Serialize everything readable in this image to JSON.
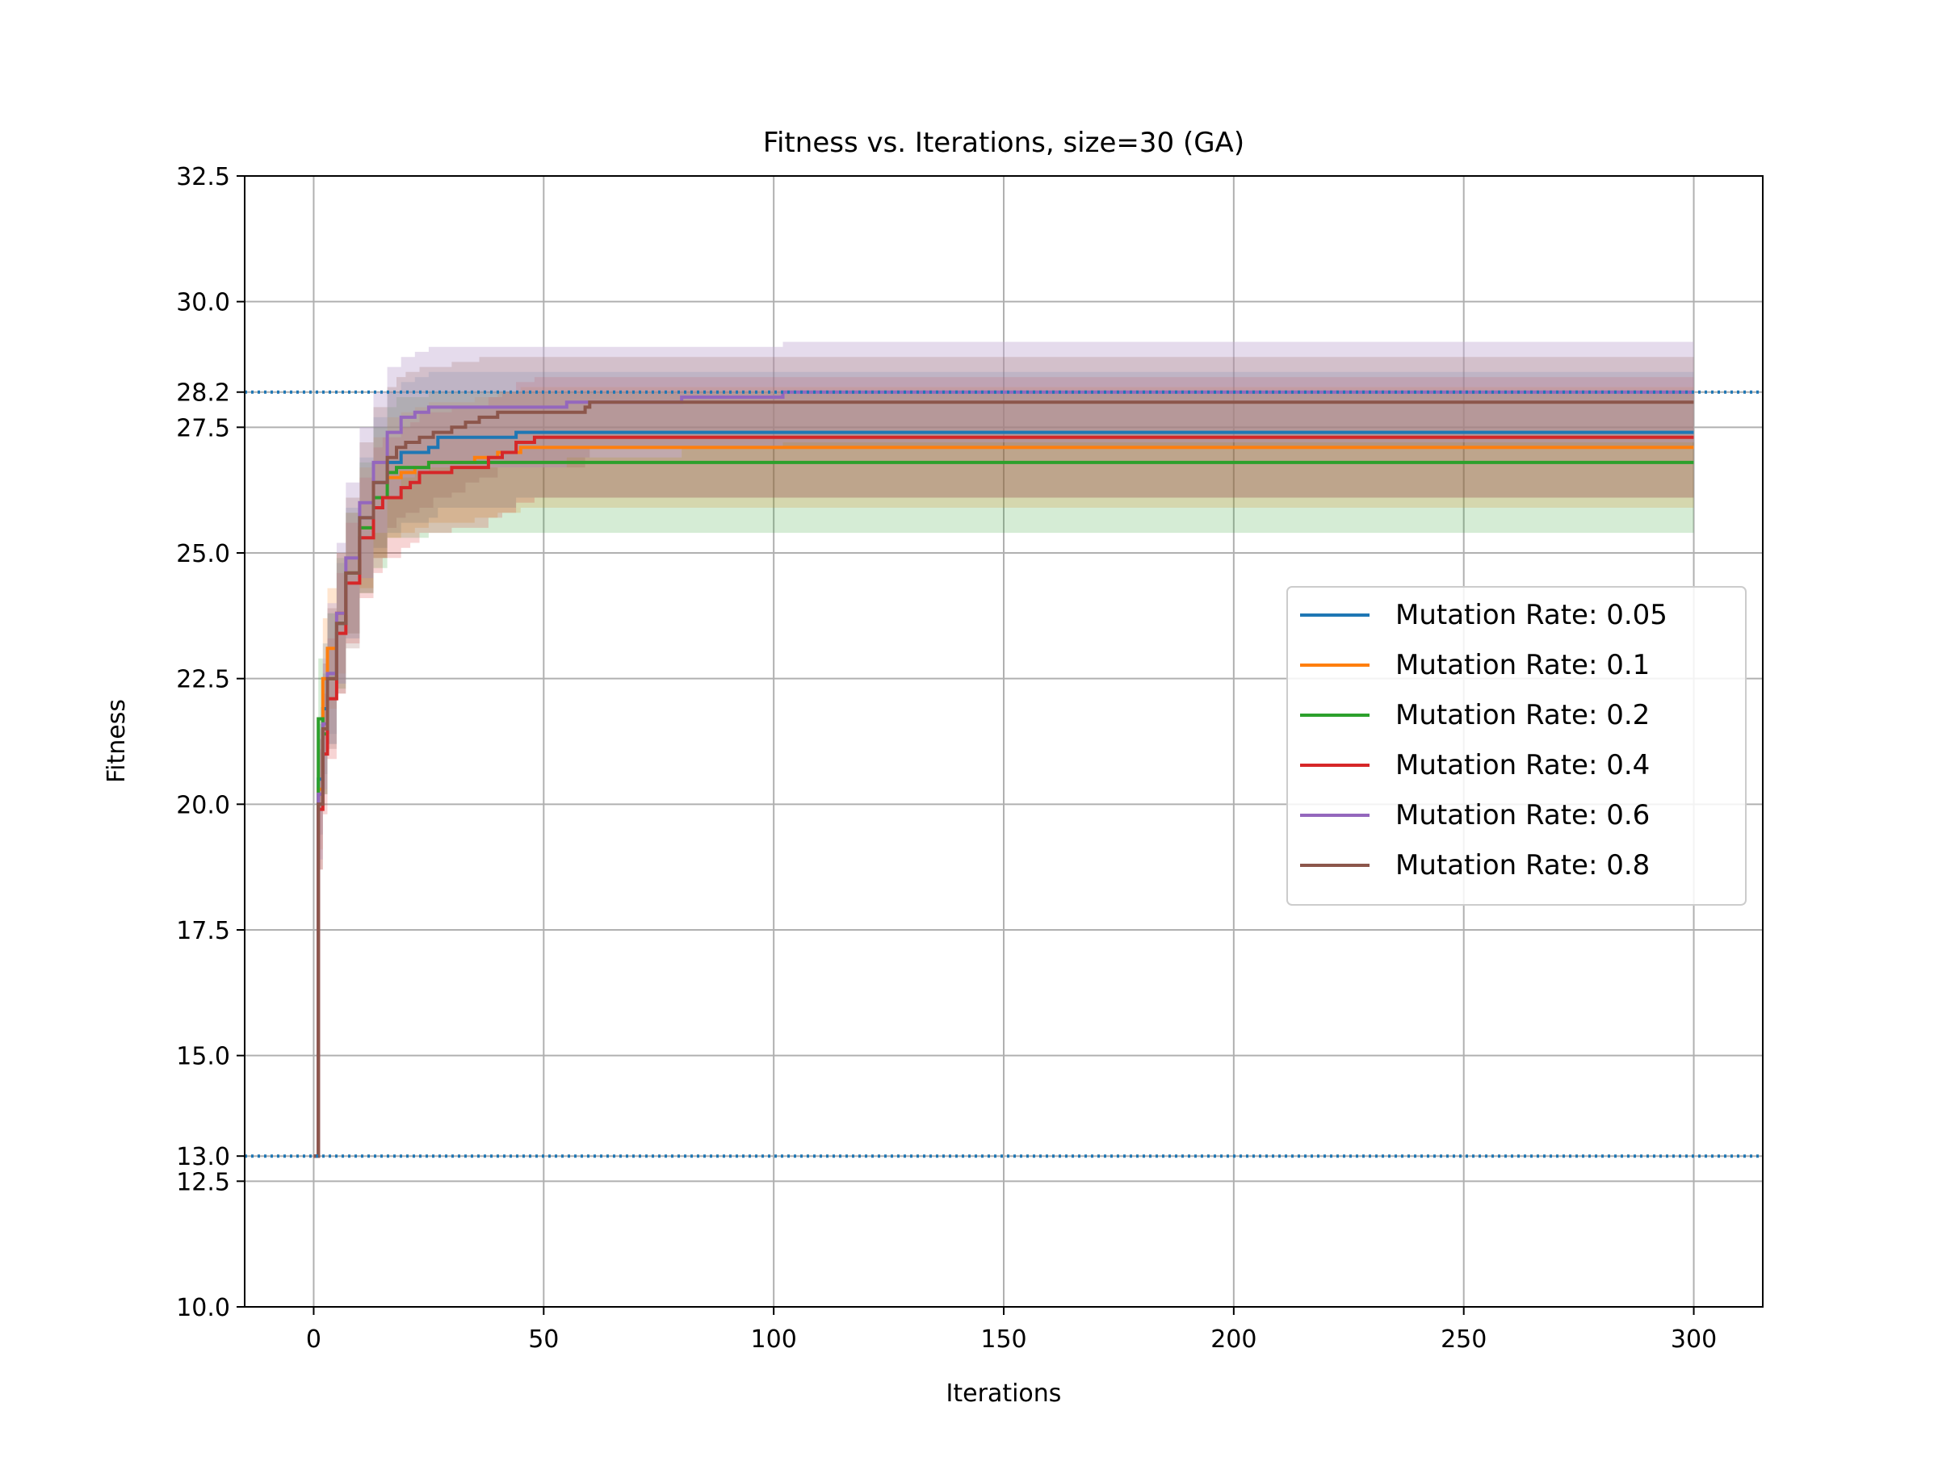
{
  "chart_data": {
    "type": "line",
    "title": "Fitness vs. Iterations, size=30 (GA)",
    "xlabel": "Iterations",
    "ylabel": "Fitness",
    "xlim": [
      -15,
      315
    ],
    "ylim": [
      10.0,
      32.5
    ],
    "xticks": [
      0,
      50,
      100,
      150,
      200,
      250,
      300
    ],
    "xtick_labels": [
      "0",
      "50",
      "100",
      "150",
      "200",
      "250",
      "300"
    ],
    "yticks": [
      10.0,
      12.5,
      13.0,
      15.0,
      17.5,
      20.0,
      22.5,
      25.0,
      27.5,
      28.2,
      30.0,
      32.5
    ],
    "ytick_labels": [
      "10.0",
      "12.5",
      "13.0",
      "15.0",
      "17.5",
      "20.0",
      "22.5",
      "25.0",
      "27.5",
      "28.2",
      "30.0",
      "32.5"
    ],
    "grid": true,
    "legend_position": "center-right",
    "reference_lines": [
      {
        "y": 28.2,
        "style": "dotted",
        "color": "#1f77b4"
      },
      {
        "y": 13.0,
        "style": "dotted",
        "color": "#1f77b4"
      }
    ],
    "series": [
      {
        "name": "Mutation Rate: 0.05",
        "color": "#1f77b4",
        "x": [
          0,
          1,
          2,
          3,
          5,
          7,
          10,
          13,
          16,
          19,
          22,
          25,
          27,
          30,
          34,
          38,
          44,
          50,
          60,
          100,
          150,
          200,
          250,
          300
        ],
        "y": [
          13.0,
          20.5,
          21.9,
          22.6,
          23.6,
          24.6,
          25.7,
          26.4,
          26.8,
          27.0,
          27.0,
          27.1,
          27.3,
          27.3,
          27.3,
          27.3,
          27.4,
          27.4,
          27.4,
          27.4,
          27.4,
          27.4,
          27.4,
          27.4
        ],
        "upper": [
          13.0,
          21.6,
          23.2,
          23.8,
          24.8,
          25.9,
          26.9,
          27.7,
          28.2,
          28.4,
          28.5,
          28.6,
          28.6,
          28.6,
          28.6,
          28.6,
          28.6,
          28.6,
          28.6,
          28.6,
          28.6,
          28.6,
          28.6,
          28.6
        ],
        "lower": [
          13.0,
          19.4,
          20.6,
          21.4,
          22.4,
          23.3,
          24.5,
          25.1,
          25.4,
          25.6,
          25.6,
          25.7,
          25.9,
          25.9,
          25.9,
          25.9,
          26.1,
          26.1,
          26.1,
          26.1,
          26.1,
          26.1,
          26.1,
          26.1
        ]
      },
      {
        "name": "Mutation Rate: 0.1",
        "color": "#ff7f0e",
        "x": [
          0,
          1,
          2,
          3,
          5,
          7,
          10,
          13,
          16,
          19,
          22,
          25,
          30,
          35,
          40,
          45,
          55,
          100,
          150,
          200,
          250,
          300
        ],
        "y": [
          13.0,
          20.3,
          22.5,
          23.1,
          23.8,
          24.6,
          25.5,
          26.1,
          26.5,
          26.6,
          26.7,
          26.8,
          26.8,
          26.9,
          27.0,
          27.1,
          27.1,
          27.1,
          27.1,
          27.1,
          27.1,
          27.1
        ],
        "upper": [
          13.0,
          21.5,
          23.7,
          24.3,
          25.0,
          25.8,
          26.7,
          27.3,
          27.7,
          27.8,
          27.9,
          28.0,
          28.0,
          28.1,
          28.2,
          28.3,
          28.3,
          28.3,
          28.3,
          28.3,
          28.3,
          28.3
        ],
        "lower": [
          13.0,
          19.1,
          21.3,
          21.9,
          22.6,
          23.4,
          24.3,
          24.9,
          25.3,
          25.4,
          25.5,
          25.6,
          25.6,
          25.7,
          25.8,
          25.9,
          25.9,
          25.9,
          25.9,
          25.9,
          25.9,
          25.9
        ]
      },
      {
        "name": "Mutation Rate: 0.2",
        "color": "#2ca02c",
        "x": [
          0,
          1,
          2,
          3,
          5,
          7,
          10,
          13,
          16,
          18,
          20,
          25,
          30,
          50,
          100,
          150,
          200,
          250,
          300
        ],
        "y": [
          13.0,
          21.7,
          21.4,
          22.5,
          23.6,
          24.6,
          25.5,
          26.1,
          26.6,
          26.7,
          26.7,
          26.8,
          26.8,
          26.8,
          26.8,
          26.8,
          26.8,
          26.8,
          26.8
        ],
        "upper": [
          13.0,
          22.9,
          22.6,
          23.8,
          24.9,
          25.8,
          26.8,
          27.5,
          27.9,
          28.1,
          28.1,
          28.2,
          28.2,
          28.2,
          28.2,
          28.2,
          28.2,
          28.2,
          28.2
        ],
        "lower": [
          13.0,
          20.5,
          20.2,
          21.2,
          22.3,
          23.4,
          24.2,
          24.7,
          25.3,
          25.3,
          25.3,
          25.4,
          25.4,
          25.4,
          25.4,
          25.4,
          25.4,
          25.4,
          25.4
        ]
      },
      {
        "name": "Mutation Rate: 0.4",
        "color": "#d62728",
        "x": [
          0,
          1,
          2,
          3,
          5,
          7,
          10,
          13,
          15,
          17,
          19,
          21,
          23,
          26,
          30,
          34,
          38,
          41,
          44,
          48,
          60,
          100,
          150,
          200,
          250,
          300
        ],
        "y": [
          13.0,
          19.9,
          21.0,
          22.1,
          23.4,
          24.4,
          25.3,
          25.9,
          26.1,
          26.1,
          26.3,
          26.4,
          26.6,
          26.6,
          26.7,
          26.7,
          26.9,
          27.0,
          27.2,
          27.3,
          27.3,
          27.3,
          27.3,
          27.3,
          27.3,
          27.3
        ],
        "upper": [
          13.0,
          21.1,
          22.2,
          23.3,
          24.6,
          25.6,
          26.5,
          27.1,
          27.3,
          27.3,
          27.5,
          27.6,
          27.8,
          27.8,
          27.9,
          27.9,
          28.1,
          28.2,
          28.4,
          28.5,
          28.5,
          28.5,
          28.5,
          28.5,
          28.5,
          28.5
        ],
        "lower": [
          13.0,
          18.7,
          19.8,
          20.9,
          22.2,
          23.2,
          24.1,
          24.6,
          24.9,
          24.9,
          25.1,
          25.2,
          25.4,
          25.4,
          25.5,
          25.5,
          25.7,
          25.8,
          26.0,
          26.1,
          26.1,
          26.1,
          26.1,
          26.1,
          26.1,
          26.1
        ]
      },
      {
        "name": "Mutation Rate: 0.6",
        "color": "#9467bd",
        "x": [
          0,
          1,
          2,
          3,
          5,
          7,
          10,
          13,
          16,
          19,
          22,
          25,
          30,
          40,
          55,
          60,
          80,
          100,
          102,
          150,
          200,
          250,
          300
        ],
        "y": [
          13.0,
          20.2,
          21.6,
          22.6,
          23.8,
          24.9,
          26.0,
          26.8,
          27.4,
          27.7,
          27.8,
          27.9,
          27.9,
          27.9,
          28.0,
          28.0,
          28.1,
          28.1,
          28.2,
          28.2,
          28.2,
          28.2,
          28.2
        ],
        "upper": [
          13.0,
          21.5,
          22.9,
          24.0,
          25.2,
          26.4,
          27.5,
          28.2,
          28.7,
          28.9,
          29.0,
          29.1,
          29.1,
          29.1,
          29.1,
          29.1,
          29.1,
          29.1,
          29.2,
          29.2,
          29.2,
          29.2,
          29.2
        ],
        "lower": [
          13.0,
          18.9,
          20.3,
          21.2,
          22.4,
          23.4,
          24.5,
          25.4,
          26.1,
          26.5,
          26.6,
          26.7,
          26.7,
          26.7,
          26.9,
          26.9,
          27.1,
          27.1,
          27.2,
          27.2,
          27.2,
          27.2,
          27.2
        ],
        "band_color": "#c5b0d5"
      },
      {
        "name": "Mutation Rate: 0.8",
        "color": "#8c564b",
        "x": [
          0,
          1,
          2,
          3,
          5,
          7,
          10,
          13,
          16,
          18,
          20,
          23,
          26,
          30,
          33,
          36,
          40,
          45,
          55,
          59,
          60,
          100,
          150,
          200,
          250,
          300
        ],
        "y": [
          13.0,
          20.0,
          21.5,
          22.5,
          23.6,
          24.6,
          25.7,
          26.4,
          26.9,
          27.1,
          27.2,
          27.3,
          27.4,
          27.5,
          27.6,
          27.7,
          27.8,
          27.8,
          27.8,
          27.9,
          28.0,
          28.0,
          28.0,
          28.0,
          28.0,
          28.0
        ],
        "upper": [
          13.0,
          21.3,
          22.8,
          23.9,
          25.0,
          26.1,
          27.2,
          27.9,
          28.3,
          28.5,
          28.6,
          28.7,
          28.7,
          28.8,
          28.8,
          28.9,
          28.9,
          28.9,
          28.9,
          28.9,
          28.9,
          28.9,
          28.9,
          28.9,
          28.9,
          28.9
        ],
        "lower": [
          13.0,
          18.7,
          20.2,
          21.1,
          22.2,
          23.1,
          24.2,
          24.9,
          25.5,
          25.7,
          25.8,
          25.9,
          26.1,
          26.2,
          26.4,
          26.5,
          26.7,
          26.7,
          26.7,
          26.9,
          27.1,
          27.1,
          27.1,
          27.1,
          27.1,
          27.1
        ]
      }
    ]
  }
}
